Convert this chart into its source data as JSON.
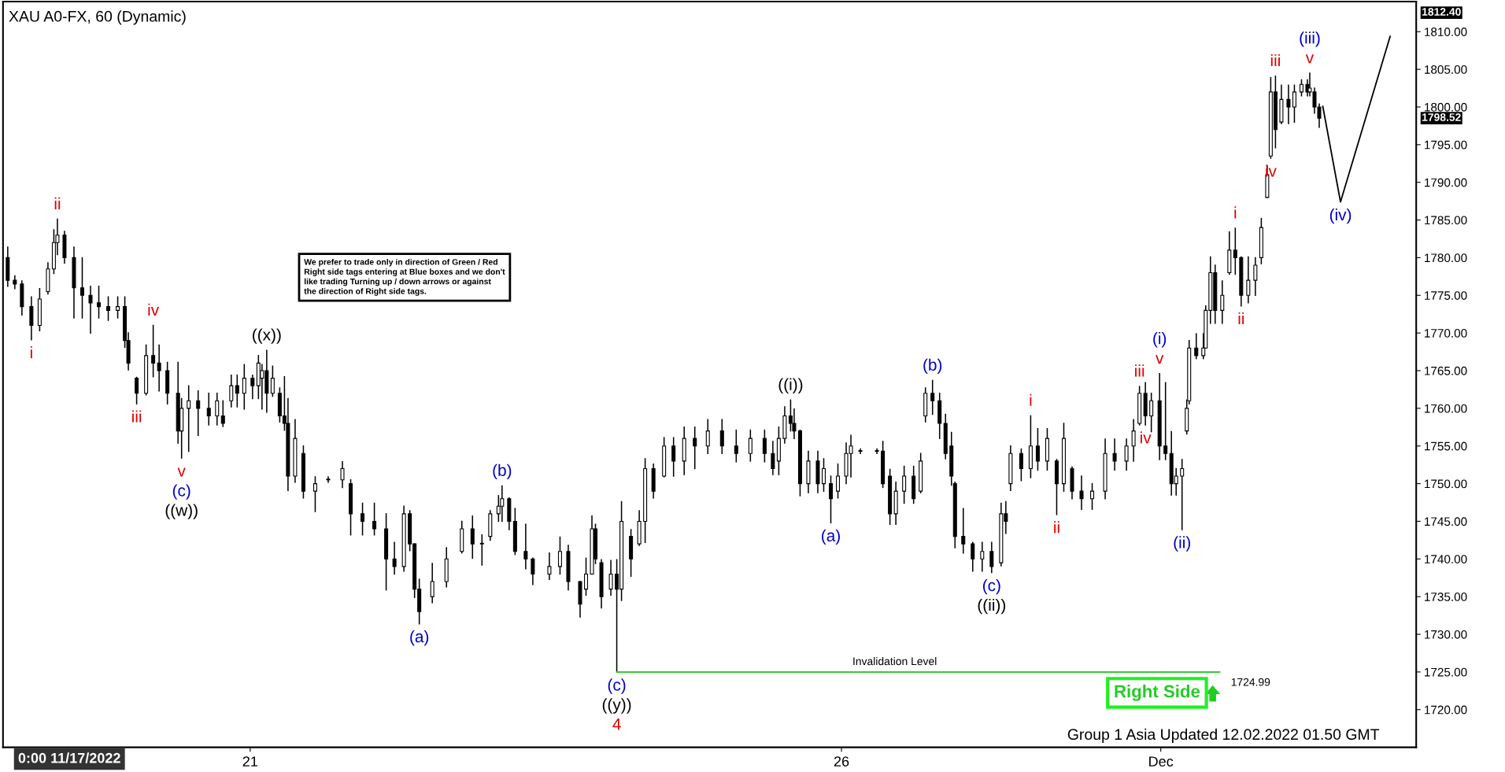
{
  "chart_data": {
    "type": "candlestick",
    "title": "XAU A0-FX, 60 (Dynamic)",
    "color": "#000000",
    "x": [
      18.95,
      19.01,
      19.07,
      19.15,
      19.22,
      19.29,
      19.34,
      19.37,
      19.43,
      19.51,
      19.58,
      19.65,
      19.72,
      19.8,
      19.88,
      19.94,
      19.97,
      20.04,
      20.12,
      20.18,
      20.23,
      20.3,
      20.39,
      20.42,
      20.48,
      20.56,
      20.65,
      20.72,
      20.77,
      20.84,
      20.89,
      20.95,
      21.02,
      21.07,
      21.1,
      21.14,
      21.19,
      21.25,
      21.29,
      21.32,
      21.38,
      21.45,
      21.55,
      21.66,
      21.78,
      21.85,
      21.95,
      22.05,
      22.15,
      22.22,
      22.3,
      22.35,
      22.39,
      22.43,
      22.54,
      22.66,
      22.79,
      22.88,
      22.96,
      23.03,
      23.1,
      23.13,
      23.19,
      23.24,
      23.33,
      23.39,
      23.53,
      23.62,
      23.69,
      23.79,
      23.84,
      23.89,
      23.92,
      23.97,
      24.05,
      24.1,
      24.14,
      24.22,
      24.29,
      24.34,
      24.41,
      24.5,
      24.58,
      24.67,
      24.76,
      24.87,
      24.99,
      25.11,
      25.23,
      25.35,
      25.42,
      25.47,
      25.52,
      25.57,
      25.6,
      25.65,
      25.72,
      25.8,
      25.85,
      25.91,
      25.97,
      26.04,
      26.08,
      26.16,
      26.3,
      26.35,
      26.41,
      26.46,
      26.53,
      26.61,
      26.67,
      26.71,
      26.77,
      26.83,
      26.88,
      26.93,
      26.96,
      27.03,
      27.11,
      27.19,
      27.27,
      27.35,
      27.39,
      27.43,
      27.52,
      27.6,
      27.66,
      27.74,
      27.82,
      27.88,
      27.95,
      28.03,
      28.12,
      28.23,
      28.31,
      28.41,
      28.47,
      28.52,
      28.57,
      28.62,
      28.69,
      28.74,
      28.79,
      28.83,
      28.88,
      28.92,
      28.94,
      29.0,
      29.06,
      29.08,
      29.12,
      29.16,
      29.22,
      29.28,
      29.33,
      29.38,
      29.44,
      29.5,
      29.55,
      29.6,
      29.63,
      29.67,
      29.72,
      29.78,
      29.83,
      29.89,
      29.94,
      29.96,
      30.0,
      30.04
    ],
    "ohlc": [
      [
        1780,
        1781.4,
        1776.2,
        1777
      ],
      [
        1777,
        1777.6,
        1775.9,
        1776.5
      ],
      [
        1776.5,
        1776.9,
        1772.4,
        1773.5
      ],
      [
        1773.5,
        1774.8,
        1769.1,
        1771
      ],
      [
        1771,
        1775.9,
        1770.3,
        1774.5
      ],
      [
        1775.5,
        1779.3,
        1775.2,
        1778.5
      ],
      [
        1778.5,
        1783.7,
        1777.9,
        1782
      ],
      [
        1782,
        1785.1,
        1780.4,
        1783
      ],
      [
        1783,
        1783.5,
        1779.3,
        1780
      ],
      [
        1780,
        1781.4,
        1772,
        1776
      ],
      [
        1776,
        1780,
        1772,
        1775
      ],
      [
        1775,
        1776.2,
        1770,
        1774
      ],
      [
        1774,
        1776.2,
        1772,
        1773.5
      ],
      [
        1773.5,
        1774.8,
        1771.7,
        1773
      ],
      [
        1773,
        1774.8,
        1772,
        1773.5
      ],
      [
        1773.5,
        1774.8,
        1768.1,
        1769
      ],
      [
        1769,
        1770,
        1765.1,
        1766
      ],
      [
        1764,
        1764.1,
        1760.6,
        1762
      ],
      [
        1762,
        1768.4,
        1761.8,
        1767
      ],
      [
        1767,
        1771,
        1764.2,
        1766
      ],
      [
        1766,
        1768.4,
        1762.3,
        1765
      ],
      [
        1765,
        1766.1,
        1760.6,
        1762
      ],
      [
        1762,
        1766.1,
        1755.4,
        1757
      ],
      [
        1757,
        1761.3,
        1753.4,
        1760
      ],
      [
        1760,
        1763,
        1754.3,
        1761
      ],
      [
        1761,
        1762.3,
        1756.4,
        1760
      ],
      [
        1760,
        1762,
        1757.8,
        1759
      ],
      [
        1759,
        1762,
        1757.8,
        1761
      ],
      [
        1759,
        1761,
        1757.6,
        1758
      ],
      [
        1761,
        1764.4,
        1760.2,
        1763
      ],
      [
        1763,
        1764.4,
        1760.2,
        1762
      ],
      [
        1762,
        1765.8,
        1759.9,
        1764
      ],
      [
        1764,
        1764.4,
        1761.3,
        1763
      ],
      [
        1763,
        1767,
        1761.3,
        1766
      ],
      [
        1764,
        1765.8,
        1759.9,
        1765
      ],
      [
        1765,
        1767.7,
        1759.5,
        1762
      ],
      [
        1762,
        1765.6,
        1761.6,
        1764
      ],
      [
        1762,
        1762.7,
        1758.2,
        1759
      ],
      [
        1759,
        1764.2,
        1757.1,
        1758
      ],
      [
        1758,
        1761.3,
        1749.1,
        1751
      ],
      [
        1751,
        1758.5,
        1750.2,
        1756
      ],
      [
        1754,
        1755,
        1748.1,
        1749
      ],
      [
        1749,
        1750.9,
        1746.3,
        1750
      ],
      [
        1750.5,
        1750.9,
        1750.2,
        1750.6
      ],
      [
        1750.5,
        1752.9,
        1749.5,
        1752
      ],
      [
        1750,
        1750.5,
        1743.2,
        1746
      ],
      [
        1746,
        1747.4,
        1743.2,
        1745
      ],
      [
        1745,
        1747.4,
        1743.2,
        1744
      ],
      [
        1744,
        1746,
        1735.9,
        1740
      ],
      [
        1740,
        1742.2,
        1738,
        1739
      ],
      [
        1739,
        1747,
        1738.4,
        1746
      ],
      [
        1746,
        1746.4,
        1741.1,
        1742
      ],
      [
        1742,
        1742,
        1734.9,
        1736
      ],
      [
        1736,
        1737.3,
        1731.4,
        1733
      ],
      [
        1735,
        1739.4,
        1734.2,
        1737
      ],
      [
        1737,
        1741.5,
        1736.3,
        1740
      ],
      [
        1741,
        1745,
        1740.8,
        1744
      ],
      [
        1744,
        1745.7,
        1740.1,
        1742
      ],
      [
        1742,
        1743.2,
        1739.2,
        1742
      ],
      [
        1743,
        1746.4,
        1742.5,
        1746
      ],
      [
        1746,
        1748.4,
        1745,
        1747
      ],
      [
        1747,
        1749.7,
        1745,
        1748
      ],
      [
        1748,
        1748.1,
        1743.9,
        1745
      ],
      [
        1745,
        1746.7,
        1740.6,
        1741
      ],
      [
        1741,
        1744.6,
        1738.7,
        1740
      ],
      [
        1740,
        1740.1,
        1736.6,
        1738
      ],
      [
        1738,
        1740.8,
        1737.3,
        1739
      ],
      [
        1739,
        1742.9,
        1738,
        1741
      ],
      [
        1741,
        1741.8,
        1735.9,
        1737
      ],
      [
        1737,
        1737,
        1732.3,
        1734
      ],
      [
        1736,
        1740.1,
        1735.2,
        1738
      ],
      [
        1738,
        1745.7,
        1738,
        1744
      ],
      [
        1744,
        1744.6,
        1739.4,
        1740
      ],
      [
        1739.5,
        1739.9,
        1733.5,
        1735
      ],
      [
        1736,
        1739.8,
        1735.2,
        1738
      ],
      [
        1738,
        1739.9,
        1724.99,
        1736
      ],
      [
        1736,
        1747.6,
        1734.5,
        1745
      ],
      [
        1743,
        1743.9,
        1737.7,
        1740
      ],
      [
        1742,
        1746.4,
        1741.8,
        1745
      ],
      [
        1745,
        1753.3,
        1742.2,
        1752
      ],
      [
        1752,
        1752.6,
        1748.1,
        1749
      ],
      [
        1751,
        1756.1,
        1750.9,
        1755
      ],
      [
        1755,
        1756.1,
        1751,
        1753
      ],
      [
        1753,
        1757.5,
        1751.2,
        1756
      ],
      [
        1756,
        1757.5,
        1752,
        1755
      ],
      [
        1755,
        1758.5,
        1754,
        1757
      ],
      [
        1757,
        1758.5,
        1754,
        1755
      ],
      [
        1755,
        1757.1,
        1752.9,
        1754
      ],
      [
        1754,
        1757.1,
        1753,
        1756
      ],
      [
        1756,
        1757.1,
        1752.9,
        1754
      ],
      [
        1754,
        1755.6,
        1751.2,
        1752
      ],
      [
        1753,
        1757.5,
        1751.2,
        1756
      ],
      [
        1756,
        1760.2,
        1755.4,
        1759
      ],
      [
        1759,
        1761.1,
        1757,
        1758
      ],
      [
        1758,
        1759.9,
        1756,
        1757
      ],
      [
        1757,
        1757.1,
        1748.4,
        1750
      ],
      [
        1750,
        1754.3,
        1748.8,
        1753
      ],
      [
        1753,
        1754.3,
        1748.8,
        1750
      ],
      [
        1750,
        1753.3,
        1749,
        1752
      ],
      [
        1750,
        1751,
        1744.8,
        1748
      ],
      [
        1749,
        1752.6,
        1748.1,
        1751
      ],
      [
        1751,
        1755.4,
        1750,
        1754
      ],
      [
        1754,
        1756.4,
        1750.9,
        1755
      ],
      [
        1754.3,
        1754.6,
        1754,
        1754.3
      ],
      [
        1754.3,
        1754.6,
        1754,
        1754.3
      ],
      [
        1754.3,
        1755.6,
        1749.5,
        1750
      ],
      [
        1751,
        1751.9,
        1744.6,
        1746
      ],
      [
        1746,
        1750.2,
        1744.6,
        1749
      ],
      [
        1749,
        1752.3,
        1747.4,
        1751
      ],
      [
        1751,
        1752.3,
        1747.4,
        1748
      ],
      [
        1749,
        1754,
        1748.8,
        1753
      ],
      [
        1759,
        1762.7,
        1758.2,
        1762
      ],
      [
        1762,
        1763.7,
        1759.2,
        1761
      ],
      [
        1761,
        1762,
        1756,
        1758
      ],
      [
        1758,
        1759.2,
        1753.3,
        1754
      ],
      [
        1755,
        1756.8,
        1749.8,
        1751
      ],
      [
        1750,
        1750.2,
        1741.5,
        1743
      ],
      [
        1743,
        1746.7,
        1740.8,
        1742
      ],
      [
        1742,
        1742.2,
        1738.4,
        1740
      ],
      [
        1740,
        1742.2,
        1738.4,
        1741
      ],
      [
        1741,
        1742.2,
        1738.2,
        1739
      ],
      [
        1739.5,
        1747.4,
        1739.1,
        1746
      ],
      [
        1746,
        1747.6,
        1743.4,
        1745
      ],
      [
        1750,
        1755,
        1749.1,
        1754
      ],
      [
        1754,
        1754.6,
        1750.4,
        1752
      ],
      [
        1752,
        1759,
        1750.8,
        1755
      ],
      [
        1755,
        1757.3,
        1751.8,
        1753
      ],
      [
        1753,
        1757.3,
        1751.8,
        1756
      ],
      [
        1753,
        1753.2,
        1745.9,
        1750
      ],
      [
        1750,
        1758,
        1749,
        1756
      ],
      [
        1752,
        1752.2,
        1748,
        1749
      ],
      [
        1749,
        1751,
        1746.6,
        1748
      ],
      [
        1748,
        1750,
        1746.6,
        1749
      ],
      [
        1749,
        1755.9,
        1748,
        1754
      ],
      [
        1754,
        1755.9,
        1751.8,
        1753
      ],
      [
        1753,
        1755.9,
        1751.8,
        1755
      ],
      [
        1755,
        1758.5,
        1753,
        1757
      ],
      [
        1758,
        1762.9,
        1757.8,
        1762
      ],
      [
        1762,
        1763.4,
        1757.8,
        1759
      ],
      [
        1759,
        1762,
        1756.9,
        1761
      ],
      [
        1761,
        1764.6,
        1753.2,
        1755
      ],
      [
        1755,
        1763.4,
        1753.2,
        1754
      ],
      [
        1754,
        1756.9,
        1748.5,
        1750
      ],
      [
        1750,
        1752,
        1748.5,
        1751
      ],
      [
        1751,
        1753.2,
        1743.9,
        1752
      ],
      [
        1757,
        1761.1,
        1756.6,
        1760
      ],
      [
        1761,
        1769,
        1760.6,
        1768
      ],
      [
        1768,
        1769.9,
        1766.6,
        1767
      ],
      [
        1767,
        1769.9,
        1766.6,
        1768
      ],
      [
        1768,
        1773.6,
        1768,
        1773
      ],
      [
        1773,
        1780.1,
        1771.3,
        1778
      ],
      [
        1778,
        1779,
        1771.3,
        1773
      ],
      [
        1773,
        1776.9,
        1771.3,
        1775
      ],
      [
        1778,
        1783.4,
        1777.8,
        1781
      ],
      [
        1781,
        1783.9,
        1777.8,
        1780
      ],
      [
        1780,
        1780.1,
        1773.6,
        1775
      ],
      [
        1775,
        1780.1,
        1774,
        1777
      ],
      [
        1777,
        1780,
        1775,
        1779
      ],
      [
        1780,
        1785.2,
        1779.2,
        1784
      ],
      [
        1788,
        1792.2,
        1788,
        1791
      ],
      [
        1793.5,
        1803.9,
        1793.2,
        1802
      ],
      [
        1802,
        1804.1,
        1794.6,
        1797
      ],
      [
        1798,
        1802.9,
        1797.8,
        1801
      ],
      [
        1801,
        1802.9,
        1797.8,
        1800
      ],
      [
        1800,
        1802.9,
        1798,
        1802
      ],
      [
        1802,
        1803.6,
        1801.5,
        1803
      ],
      [
        1803,
        1803.6,
        1801.5,
        1802
      ],
      [
        1802,
        1804.5,
        1801.5,
        1802.5
      ],
      [
        1802,
        1802.5,
        1799.2,
        1800
      ],
      [
        1800,
        1800.4,
        1797.3,
        1798.52
      ]
    ],
    "series": [
      {
        "type": "line",
        "color": "#000000",
        "x": [
          30.07,
          30.22,
          30.64
        ],
        "values": [
          1800.1,
          1787.4,
          1809.4
        ]
      },
      {
        "type": "line",
        "color": "#33cc33",
        "x": [
          24.1,
          29.2
        ],
        "values": [
          1724.99,
          1724.99
        ]
      }
    ],
    "xlim": [
      18.91,
      30.86
    ],
    "xticks": [
      21,
      26,
      {
        "value": 28.7,
        "label": "Dec"
      }
    ],
    "ylim": [
      1715,
      1814
    ],
    "yticks": [
      {
        "value": 1720,
        "label": "1720.00"
      },
      {
        "value": 1725,
        "label": "1725.00"
      },
      {
        "value": 1730,
        "label": "1730.00"
      },
      {
        "value": 1735,
        "label": "1735.00"
      },
      {
        "value": 1740,
        "label": "1740.00"
      },
      {
        "value": 1745,
        "label": "1745.00"
      },
      {
        "value": 1750,
        "label": "1750.00"
      },
      {
        "value": 1755,
        "label": "1755.00"
      },
      {
        "value": 1760,
        "label": "1760.00"
      },
      {
        "value": 1765,
        "label": "1765.00"
      },
      {
        "value": 1770,
        "label": "1770.00"
      },
      {
        "value": 1775,
        "label": "1775.00"
      },
      {
        "value": 1780,
        "label": "1780.00"
      },
      {
        "value": 1785,
        "label": "1785.00"
      },
      {
        "value": 1790,
        "label": "1790.00"
      },
      {
        "value": 1795,
        "label": "1795.00"
      },
      {
        "value": 1800,
        "label": "1800.00"
      },
      {
        "value": 1805,
        "label": "1805.00"
      },
      {
        "value": 1810,
        "label": "1810.00"
      }
    ],
    "grid": false,
    "annotations": [
      {
        "text": "i",
        "x": 19.15,
        "y": 1769.1
      },
      {
        "text": "ii",
        "x": 19.37,
        "y": 1785.1
      },
      {
        "text": "iii",
        "x": 20.04,
        "y": 1760.6
      },
      {
        "text": "iv",
        "x": 20.18,
        "y": 1771
      },
      {
        "text": "v",
        "x": 20.42,
        "y": 1753.4
      },
      {
        "text": "(c)",
        "x": 20.42,
        "y": 1753.4
      },
      {
        "text": "((w))",
        "x": 20.42,
        "y": 1753.4
      },
      {
        "text": "((x))",
        "x": 21.14,
        "y": 1767.7
      },
      {
        "text": "(a)",
        "x": 22.43,
        "y": 1731.4
      },
      {
        "text": "(b)",
        "x": 23.13,
        "y": 1749.7
      },
      {
        "text": "(c)",
        "x": 24.1,
        "y": 1724.99
      },
      {
        "text": "((y))",
        "x": 24.1,
        "y": 1724.99
      },
      {
        "text": "4",
        "x": 24.1,
        "y": 1724.99
      },
      {
        "text": "((i))",
        "x": 25.57,
        "y": 1761.1
      },
      {
        "text": "(a)",
        "x": 25.91,
        "y": 1744.8
      },
      {
        "text": "(b)",
        "x": 26.77,
        "y": 1763.7
      },
      {
        "text": "(c)",
        "x": 27.27,
        "y": 1738.2
      },
      {
        "text": "((ii))",
        "x": 27.27,
        "y": 1738.2
      },
      {
        "text": "i",
        "x": 27.6,
        "y": 1759
      },
      {
        "text": "ii",
        "x": 27.82,
        "y": 1745.9
      },
      {
        "text": "iii",
        "x": 28.52,
        "y": 1762.9
      },
      {
        "text": "iv",
        "x": 28.57,
        "y": 1757.8
      },
      {
        "text": "v",
        "x": 28.69,
        "y": 1764.6
      },
      {
        "text": "(i)",
        "x": 28.69,
        "y": 1764.6
      },
      {
        "text": "(ii)",
        "x": 28.88,
        "y": 1743.9
      },
      {
        "text": "i",
        "x": 29.33,
        "y": 1783.9
      },
      {
        "text": "ii",
        "x": 29.38,
        "y": 1773.6
      },
      {
        "text": "iii",
        "x": 29.67,
        "y": 1804.1
      },
      {
        "text": "iv",
        "x": 29.63,
        "y": 1793.2
      },
      {
        "text": "v",
        "x": 29.96,
        "y": 1804.5
      },
      {
        "text": "(iii)",
        "x": 29.96,
        "y": 1804.5
      },
      {
        "text": "(iv)",
        "x": 30.22,
        "y": 1787.4
      },
      {
        "text": "Invalidation Level",
        "x": 26.45,
        "y": 1724.99
      },
      {
        "text": "1724.99",
        "x": 29.2,
        "y": 1724.99
      },
      "We prefer to trade only in direction of Green / Red\nRight side tags entering at Blue boxes and we don't\nlike trading Turning up / down arrows or against\nthe direction of Right side tags.",
      "Right Side",
      "Group 1 Asia Updated 12.02.2022 01.50 GMT",
      "0:00 11/17/2022",
      "1812.40",
      "1798.52"
    ]
  }
}
